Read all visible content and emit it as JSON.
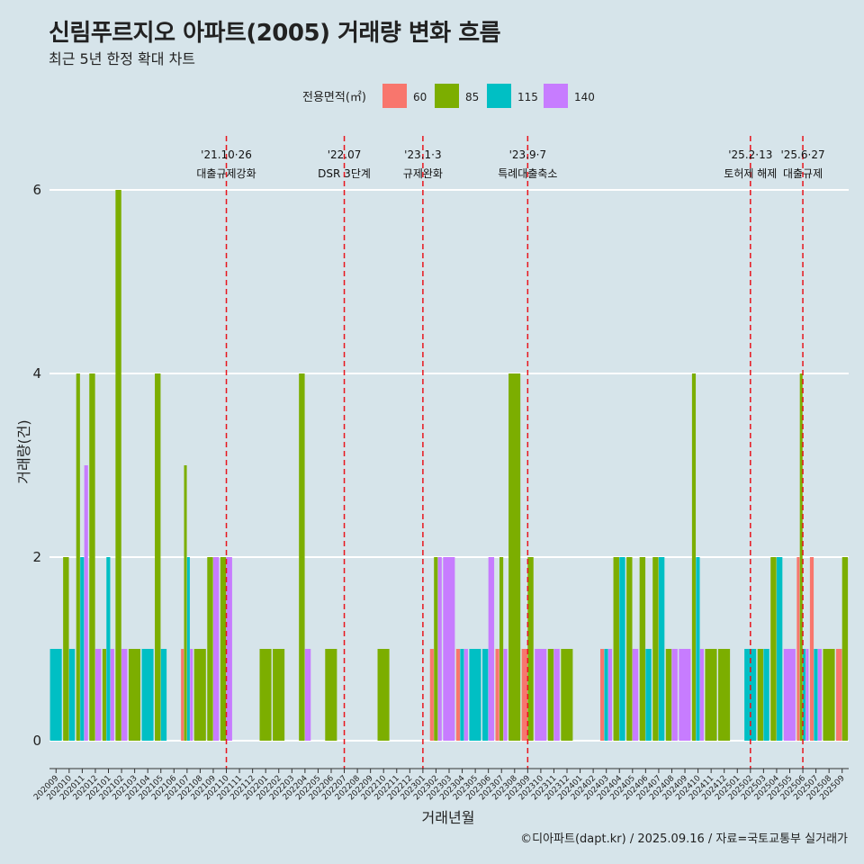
{
  "header": {
    "title": "신림푸르지오 아파트(2005) 거래량 변화 흐름",
    "subtitle": "최근 5년 한정 확대 차트"
  },
  "caption": "©디아파트(dapt.kr) / 2025.09.16 / 자료=국토교통부 실거래가",
  "chart_data": {
    "type": "bar",
    "xlabel": "거래년월",
    "ylabel": "거래량(건)",
    "ylim": [
      0,
      6
    ],
    "yticks": [
      0,
      2,
      4,
      6
    ],
    "grid": true,
    "legend": {
      "title": "전용면적(㎡)",
      "placement": "top",
      "entries": [
        {
          "name": "60",
          "color": "#f8766d"
        },
        {
          "name": "85",
          "color": "#7cae00"
        },
        {
          "name": "115",
          "color": "#00bfc4"
        },
        {
          "name": "140",
          "color": "#c77cff"
        }
      ]
    },
    "categories": [
      "202009",
      "202010",
      "202011",
      "202012",
      "202101",
      "202102",
      "202103",
      "202104",
      "202105",
      "202106",
      "202107",
      "202108",
      "202109",
      "202110",
      "202111",
      "202112",
      "202201",
      "202202",
      "202203",
      "202204",
      "202205",
      "202206",
      "202207",
      "202208",
      "202209",
      "202210",
      "202211",
      "202212",
      "202301",
      "202302",
      "202303",
      "202304",
      "202305",
      "202306",
      "202307",
      "202308",
      "202309",
      "202310",
      "202311",
      "202312",
      "202401",
      "202402",
      "202403",
      "202404",
      "202405",
      "202406",
      "202407",
      "202408",
      "202409",
      "202410",
      "202411",
      "202412",
      "202501",
      "202502",
      "202503",
      "202504",
      "202505",
      "202506",
      "202507",
      "202508",
      "202509"
    ],
    "series": [
      {
        "name": "60",
        "values": [
          0,
          0,
          0,
          0,
          0,
          0,
          0,
          0,
          0,
          0,
          1,
          0,
          0,
          0,
          0,
          0,
          0,
          0,
          0,
          0,
          0,
          0,
          0,
          0,
          0,
          0,
          0,
          0,
          0,
          1,
          0,
          1,
          0,
          0,
          1,
          0,
          1,
          0,
          0,
          0,
          0,
          0,
          1,
          0,
          0,
          0,
          0,
          0,
          0,
          0,
          0,
          0,
          0,
          0,
          0,
          0,
          0,
          2,
          2,
          0,
          1
        ]
      },
      {
        "name": "85",
        "values": [
          0,
          2,
          4,
          4,
          1,
          6,
          1,
          0,
          4,
          0,
          3,
          1,
          2,
          2,
          0,
          0,
          1,
          1,
          0,
          4,
          0,
          1,
          0,
          0,
          0,
          1,
          0,
          0,
          0,
          2,
          0,
          0,
          0,
          0,
          2,
          4,
          2,
          0,
          1,
          1,
          0,
          0,
          0,
          2,
          2,
          2,
          2,
          1,
          0,
          4,
          1,
          1,
          0,
          0,
          1,
          2,
          0,
          4,
          0,
          1,
          2
        ]
      },
      {
        "name": "115",
        "values": [
          1,
          1,
          2,
          0,
          2,
          0,
          0,
          1,
          1,
          0,
          2,
          0,
          0,
          0,
          0,
          0,
          0,
          0,
          0,
          0,
          0,
          0,
          0,
          0,
          0,
          0,
          0,
          0,
          0,
          0,
          0,
          1,
          1,
          1,
          0,
          0,
          0,
          0,
          0,
          0,
          0,
          0,
          1,
          2,
          0,
          1,
          2,
          0,
          0,
          2,
          0,
          0,
          0,
          1,
          1,
          2,
          0,
          1,
          1,
          0,
          0
        ]
      },
      {
        "name": "140",
        "values": [
          0,
          0,
          3,
          1,
          1,
          1,
          0,
          0,
          0,
          0,
          1,
          0,
          2,
          2,
          0,
          0,
          0,
          0,
          0,
          1,
          0,
          0,
          0,
          0,
          0,
          0,
          0,
          0,
          0,
          2,
          2,
          1,
          0,
          2,
          1,
          0,
          0,
          1,
          1,
          0,
          0,
          0,
          1,
          0,
          1,
          0,
          0,
          1,
          1,
          1,
          0,
          0,
          0,
          0,
          0,
          0,
          1,
          1,
          1,
          0,
          0
        ]
      }
    ],
    "events": [
      {
        "month": "202110",
        "date": "'21.10·26",
        "label": "대출규제강화"
      },
      {
        "month": "202207",
        "date": "'22.07",
        "label": "DSR 3단계"
      },
      {
        "month": "202301",
        "date": "'23.1·3",
        "label": "규제완화"
      },
      {
        "month": "202309",
        "date": "'23.9·7",
        "label": "특례대출축소"
      },
      {
        "month": "202502",
        "date": "'25.2·13",
        "label": "토허제 해제"
      },
      {
        "month": "202506",
        "date": "'25.6·27",
        "label": "대출규제"
      }
    ]
  }
}
